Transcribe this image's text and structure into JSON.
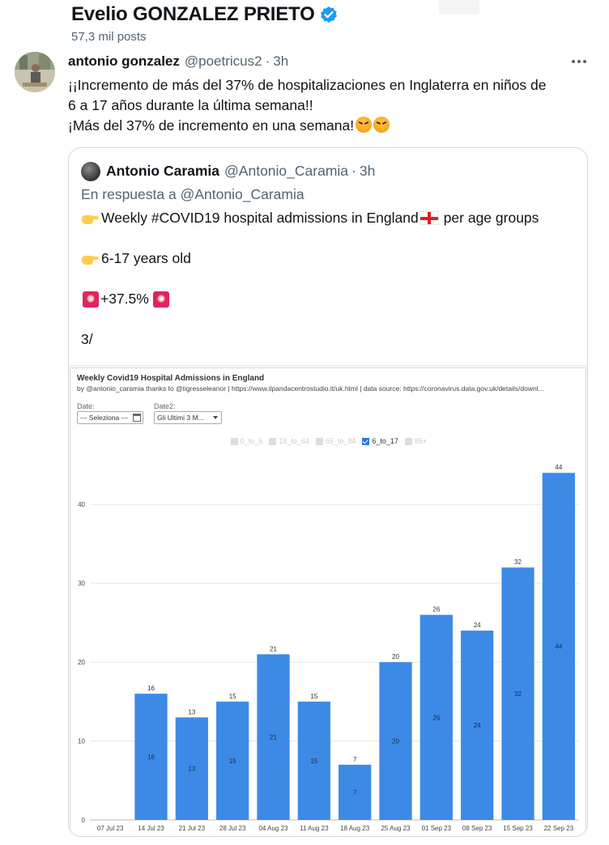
{
  "header": {
    "profile_name": "Evelio GONZALEZ PRIETO",
    "post_count": "57,3 mil posts"
  },
  "tweet": {
    "name": "antonio gonzalez",
    "handle": "@poetricus2",
    "dot": "·",
    "time": "3h",
    "text_line1": "¡¡Incremento de más del 37% de hospitalizaciones en Inglaterra en niños de",
    "text_line2": "6 a 17 años durante la última semana!!",
    "text_line3": "¡Más del 37% de incremento en una semana!"
  },
  "quote": {
    "name": "Antonio Caramia",
    "handle": "@Antonio_Caramia",
    "dot": "·",
    "time": "3h",
    "reply_prefix": "En respuesta a",
    "reply_handle": "@Antonio_Caramia",
    "line1": "Weekly #COVID19 hospital admissions in England",
    "line1_suffix": "per age groups",
    "line2": "6-17 years old",
    "line3": "+37.5%",
    "line4": "3/"
  },
  "chart_panel": {
    "title": "Weekly Covid19 Hospital Admissions in England",
    "subtitle": "by @antonio_caramia thanks to @tigresseleanor | https://www.ilpandacentrostudio.it/uk.html | data source: https://coronavirus.data.gov.uk/details/downl...",
    "date_label": "Date:",
    "date_value": "--- Seleziona ---",
    "date2_label": "Date2:",
    "date2_value": "Gli Ultimi 3 M...",
    "legend": [
      "0_to_5",
      "18_to_64",
      "65_to_84",
      "6_to_17",
      "85+"
    ],
    "legend_active": "6_to_17"
  },
  "chart_data": {
    "type": "bar",
    "title": "Weekly Covid19 Hospital Admissions in England",
    "categories": [
      "07 Jul 23",
      "14 Jul 23",
      "21 Jul 23",
      "28 Jul 23",
      "04 Aug 23",
      "11 Aug 23",
      "18 Aug 23",
      "25 Aug 23",
      "01 Sep 23",
      "08 Sep 23",
      "15 Sep 23",
      "22 Sep 23"
    ],
    "series": [
      {
        "name": "6_to_17",
        "values": [
          null,
          16,
          13,
          15,
          21,
          15,
          7,
          20,
          26,
          24,
          32,
          44
        ]
      }
    ],
    "ylim": [
      0,
      47
    ],
    "yticks": [
      0,
      10,
      20,
      30,
      40
    ],
    "bar_color": "#3d8ae6",
    "grid": true
  },
  "colors": {
    "verified": "#1d9bf0",
    "secondary_text": "#536471"
  }
}
